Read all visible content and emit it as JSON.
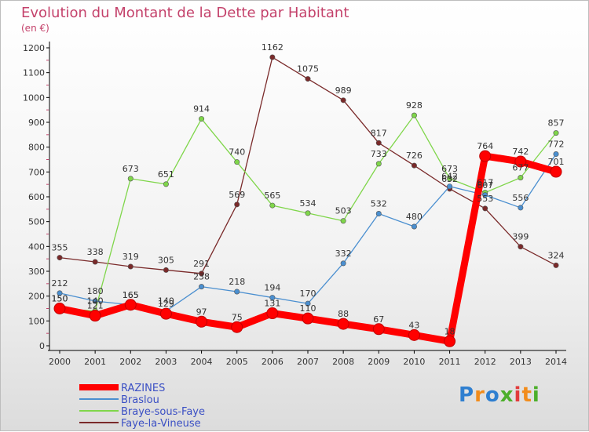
{
  "chart_data": {
    "type": "line",
    "title": "Evolution du Montant de la Dette par Habitant",
    "subtitle": "(en €)",
    "xlabel": "",
    "ylabel": "",
    "categories": [
      "2000",
      "2001",
      "2002",
      "2003",
      "2004",
      "2005",
      "2006",
      "2007",
      "2008",
      "2009",
      "2010",
      "2011",
      "2012",
      "2013",
      "2014"
    ],
    "yticks": [
      0,
      100,
      200,
      300,
      400,
      500,
      600,
      700,
      800,
      900,
      1000,
      1100,
      1200
    ],
    "ylim": [
      0,
      1200
    ],
    "grid": false,
    "legend_position": "bottom-left",
    "series": [
      {
        "name": "RAZINES",
        "color": "#ff0000",
        "values": [
          150,
          121,
          165,
          129,
          97,
          75,
          131,
          110,
          88,
          67,
          43,
          18,
          764,
          742,
          701
        ],
        "labels": [
          "150",
          "121",
          "165",
          "129",
          "97",
          "75",
          "131",
          "110",
          "88",
          "67",
          "43",
          "18",
          "764",
          "742",
          "701"
        ]
      },
      {
        "name": "Braslou",
        "color": "#4a8fd0",
        "values": [
          212,
          180,
          165,
          140,
          238,
          218,
          194,
          170,
          332,
          532,
          480,
          642,
          607,
          556,
          772
        ],
        "labels": [
          "212",
          "180",
          "165",
          "140",
          "238",
          "218",
          "194",
          "170",
          "332",
          "532",
          "480",
          "642",
          "607",
          "556",
          "772"
        ]
      },
      {
        "name": "Braye-sous-Faye",
        "color": "#7fd64a",
        "values": [
          150,
          140,
          673,
          651,
          914,
          740,
          565,
          534,
          503,
          733,
          928,
          673,
          617,
          677,
          857
        ],
        "labels": [
          "150",
          "140",
          "673",
          "651",
          "914",
          "740",
          "565",
          "534",
          "503",
          "733",
          "928",
          "673",
          "617",
          "677",
          "857"
        ]
      },
      {
        "name": "Faye-la-Vineuse",
        "color": "#7a2a2a",
        "values": [
          355,
          338,
          319,
          305,
          291,
          569,
          1162,
          1075,
          989,
          817,
          726,
          632,
          553,
          399,
          324
        ],
        "labels": [
          "355",
          "338",
          "319",
          "305",
          "291",
          "569",
          "1162",
          "1075",
          "989",
          "817",
          "726",
          "632",
          "553",
          "399",
          "324"
        ]
      }
    ]
  },
  "logo": {
    "text": "Proxiti",
    "letters": [
      "P",
      "r",
      "o",
      "x",
      "i",
      "t",
      "i"
    ],
    "colors": [
      "#2f7fd0",
      "#f28c1b",
      "#2f7fd0",
      "#4caf2a",
      "#e23b3b",
      "#f28c1b",
      "#4caf2a"
    ]
  }
}
